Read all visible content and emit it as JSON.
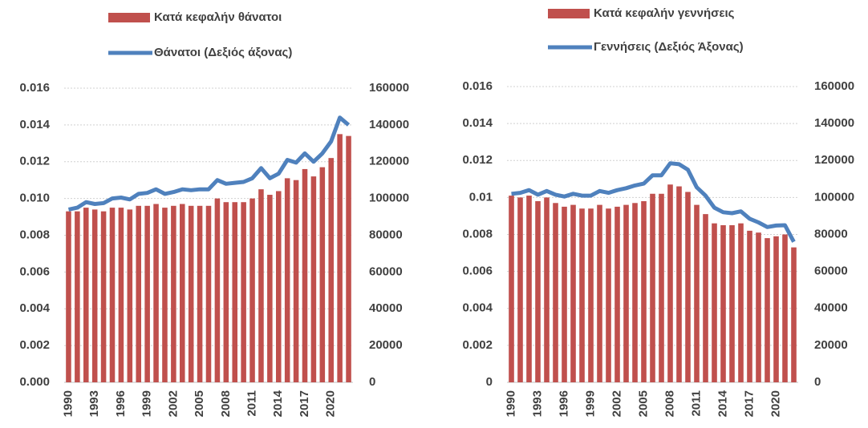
{
  "chart_data": [
    {
      "type": "bar",
      "categories": [
        "1990",
        null,
        null,
        "1993",
        null,
        null,
        "1996",
        null,
        null,
        "1999",
        null,
        null,
        "2002",
        null,
        null,
        "2005",
        null,
        null,
        "2008",
        null,
        null,
        "2011",
        null,
        null,
        "2014",
        null,
        null,
        "2017",
        null,
        null,
        "2020",
        null,
        null
      ],
      "series": [
        {
          "name": "Κατά κεφαλήν θάνατοι",
          "color": "#c0504d",
          "values": [
            0.0093,
            0.0093,
            0.0095,
            0.0094,
            0.0093,
            0.0095,
            0.0095,
            0.0094,
            0.0096,
            0.0096,
            0.0097,
            0.0095,
            0.0096,
            0.0097,
            0.0096,
            0.0096,
            0.0096,
            0.01,
            0.0098,
            0.0098,
            0.0098,
            0.01,
            0.0105,
            0.0102,
            0.0104,
            0.0111,
            0.011,
            0.0116,
            0.0112,
            0.0117,
            0.0122,
            0.0135,
            0.0134
          ]
        },
        {
          "name": "Θάνατοι (Δεξιός άξονας)",
          "color": "#4f81bd",
          "type": "line",
          "axis": "y2",
          "values": [
            94000,
            95000,
            98000,
            97000,
            97500,
            100000,
            100500,
            99500,
            102500,
            103000,
            105000,
            102500,
            103500,
            105000,
            104500,
            105000,
            105000,
            110000,
            108000,
            108500,
            109000,
            111000,
            116500,
            111000,
            113500,
            121000,
            119500,
            124500,
            120000,
            124500,
            131000,
            144000,
            140000
          ]
        }
      ],
      "ylim": [
        0,
        0.016
      ],
      "yticks": [
        {
          "value": 0,
          "label": "0.000"
        },
        {
          "value": 0.002,
          "label": "0.002"
        },
        {
          "value": 0.004,
          "label": "0.004"
        },
        {
          "value": 0.006,
          "label": "0.006"
        },
        {
          "value": 0.008,
          "label": "0.008"
        },
        {
          "value": 0.01,
          "label": "0.010"
        },
        {
          "value": 0.012,
          "label": "0.012"
        },
        {
          "value": 0.014,
          "label": "0.014"
        },
        {
          "value": 0.016,
          "label": "0.016"
        }
      ],
      "y2lim": [
        0,
        160000
      ],
      "y2ticks": [
        0,
        20000,
        40000,
        60000,
        80000,
        100000,
        120000,
        140000,
        160000
      ],
      "grid": true
    },
    {
      "type": "bar",
      "categories": [
        "1990",
        null,
        null,
        "1993",
        null,
        null,
        "1996",
        null,
        null,
        "1999",
        null,
        null,
        "2002",
        null,
        null,
        "2005",
        null,
        null,
        "2008",
        null,
        null,
        "2011",
        null,
        null,
        "2014",
        null,
        null,
        "2017",
        null,
        null,
        "2020",
        null,
        null
      ],
      "series": [
        {
          "name": "Κατά κεφαλήν γεννήσεις",
          "color": "#c0504d",
          "values": [
            0.0101,
            0.01,
            0.0101,
            0.0098,
            0.01,
            0.0097,
            0.0095,
            0.0096,
            0.0094,
            0.0094,
            0.0096,
            0.0094,
            0.0095,
            0.0096,
            0.0097,
            0.0098,
            0.0102,
            0.0102,
            0.0107,
            0.0106,
            0.0103,
            0.0096,
            0.0091,
            0.0086,
            0.0085,
            0.0085,
            0.0086,
            0.0082,
            0.0081,
            0.0078,
            0.0079,
            0.008,
            0.0073
          ]
        },
        {
          "name": "Γεννήσεις (Δεξιός Άξονας)",
          "color": "#4f81bd",
          "type": "line",
          "axis": "y2",
          "values": [
            102000,
            102500,
            104000,
            101500,
            103500,
            101500,
            100500,
            102000,
            101000,
            101000,
            103500,
            102500,
            104000,
            105000,
            106500,
            107500,
            112000,
            112000,
            118500,
            118000,
            115000,
            105500,
            101000,
            94500,
            92000,
            91500,
            92500,
            88500,
            86500,
            84000,
            84800,
            85000,
            76000
          ]
        }
      ],
      "ylim": [
        0,
        0.016
      ],
      "yticks": [
        0,
        0.002,
        0.004,
        0.006,
        0.008,
        0.01,
        0.012,
        0.014,
        0.016
      ],
      "y2lim": [
        0,
        160000
      ],
      "y2ticks": [
        0,
        20000,
        40000,
        60000,
        80000,
        100000,
        120000,
        140000,
        160000
      ],
      "grid": true
    }
  ]
}
